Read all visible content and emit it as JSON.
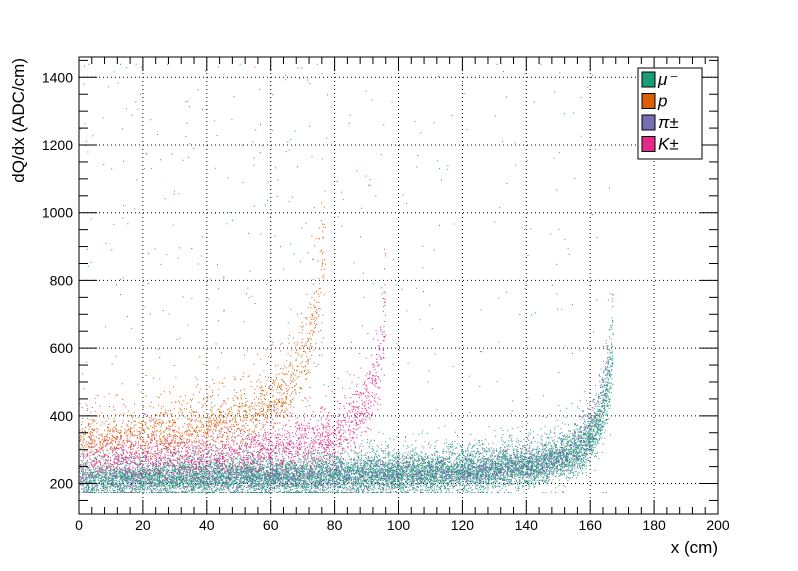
{
  "chart_data": {
    "type": "scatter",
    "xlabel": "x (cm)",
    "ylabel": "dQ/dx (ADC/cm)",
    "xlim": [
      0,
      200
    ],
    "ylim": [
      110,
      1460
    ],
    "x_ticks": [
      0,
      20,
      40,
      60,
      80,
      100,
      120,
      140,
      160,
      180,
      200
    ],
    "y_ticks": [
      200,
      400,
      600,
      800,
      1000,
      1200,
      1400
    ],
    "grid": true,
    "grid_style": "dotted",
    "legend_position": "top-right",
    "series": [
      {
        "name": "μ⁻",
        "color": "#1b9e77",
        "range_end_x": 167,
        "baseline": 210,
        "density": 9000
      },
      {
        "name": "p",
        "color": "#d95f02",
        "range_end_x": 77,
        "baseline": 330,
        "density": 1600
      },
      {
        "name": "π±",
        "color": "#7570b3",
        "range_end_x": 166,
        "baseline": 210,
        "density": 4500
      },
      {
        "name": "K±",
        "color": "#e7298a",
        "range_end_x": 96,
        "baseline": 265,
        "density": 2200
      }
    ]
  }
}
